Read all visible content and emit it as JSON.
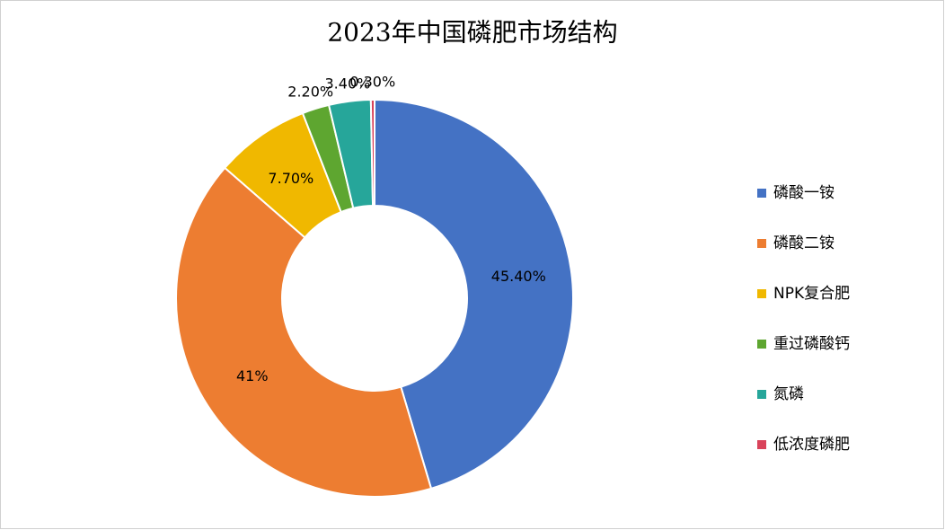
{
  "chart_data": {
    "type": "donut",
    "title": "2023年中国磷肥市场结构",
    "categories": [
      "磷酸一铵",
      "磷酸二铵",
      "NPK复合肥",
      "重过磷酸钙",
      "氮磷",
      "低浓度磷肥"
    ],
    "values": [
      45.4,
      41,
      7.7,
      2.2,
      3.4,
      0.3
    ],
    "value_labels": [
      "45.40%",
      "41%",
      "7.70%",
      "2.20%",
      "3.40%",
      "0.30%"
    ],
    "colors": [
      "#4472c4",
      "#ed7d31",
      "#f0b800",
      "#5ea630",
      "#26a69a",
      "#d9435a"
    ],
    "legend": "right"
  }
}
